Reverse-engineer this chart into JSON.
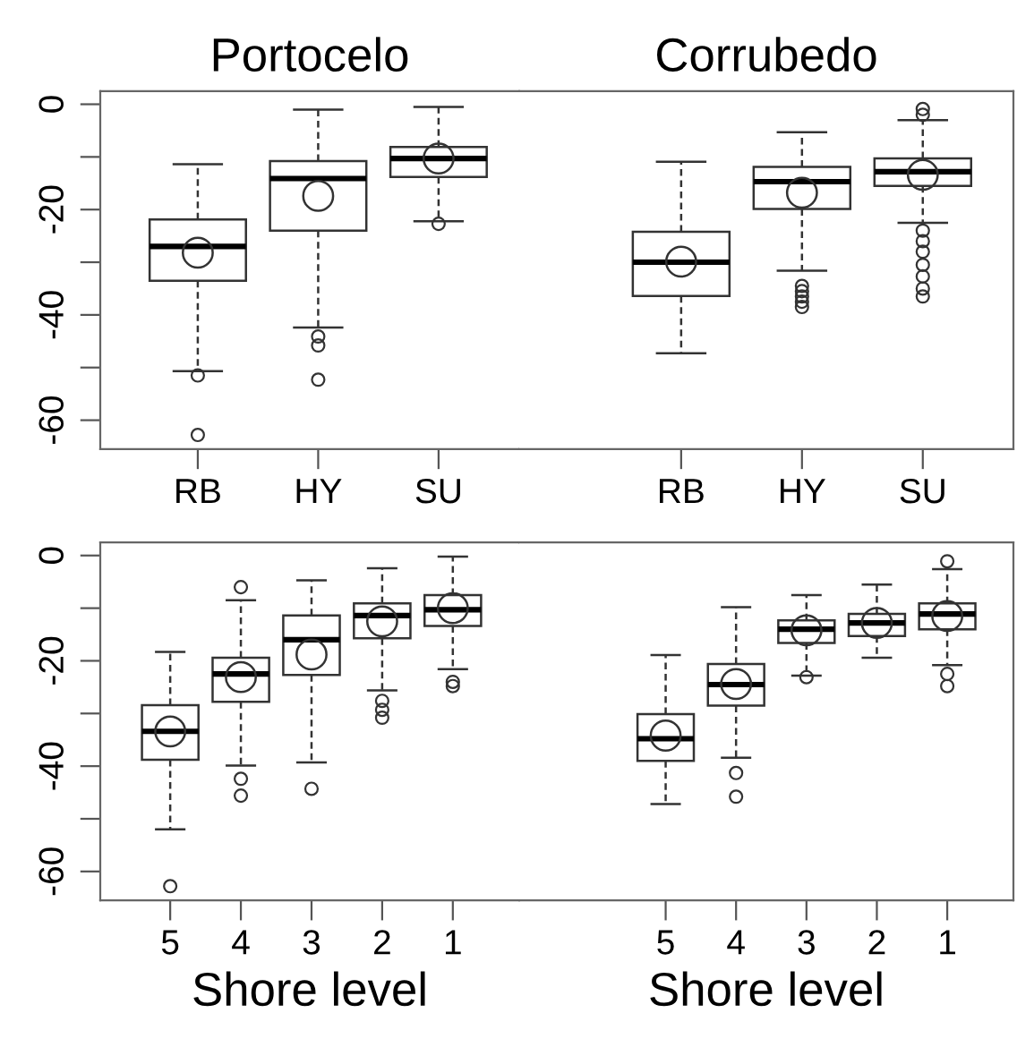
{
  "chart_data": [
    {
      "type": "box",
      "title": "Portocelo",
      "categories": [
        "RB",
        "HY",
        "SU"
      ],
      "ylim": [
        -65.5,
        2.5
      ],
      "yticks": [
        0,
        {
          "value": -10,
          "label": null
        },
        -20,
        {
          "value": -30,
          "label": null
        },
        -40,
        {
          "value": -50,
          "label": null
        },
        -60
      ],
      "grid": false,
      "marker": "circle",
      "boxes": [
        {
          "low": -50.7,
          "q1": -33.5,
          "median": -27,
          "q3": -21.9,
          "high": -11.4,
          "mean": -28.2,
          "outliers": [
            -51.5,
            -62.8
          ]
        },
        {
          "low": -42.4,
          "q1": -24,
          "median": -14.1,
          "q3": -10.8,
          "high": -1,
          "mean": -17.4,
          "outliers": [
            -44.1,
            -45.8,
            -52.3
          ]
        },
        {
          "low": -22.2,
          "q1": -13.8,
          "median": -10.3,
          "q3": -8.1,
          "high": -0.5,
          "mean": -10.3,
          "outliers": [
            -22.7
          ]
        }
      ]
    },
    {
      "type": "box",
      "title": "Corrubedo",
      "categories": [
        "RB",
        "HY",
        "SU"
      ],
      "ylim": [
        -65.5,
        2.5
      ],
      "tick_labels": "x",
      "grid": false,
      "marker": "circle",
      "boxes": [
        {
          "low": -47.3,
          "q1": -36.4,
          "median": -30,
          "q3": -24.2,
          "high": -10.9,
          "mean": -29.9
        },
        {
          "low": -31.6,
          "q1": -19.9,
          "median": -14.7,
          "q3": -11.9,
          "high": -5.3,
          "mean": -16.8,
          "outliers": [
            -34.5,
            -35.5,
            -36.5,
            -37.5,
            -38.5
          ]
        },
        {
          "low": -22.5,
          "q1": -15.5,
          "median": -12.8,
          "q3": -10.3,
          "high": -3,
          "mean": -13.4,
          "outliers": [
            -0.9,
            -2,
            -24,
            -26,
            -28,
            -30.5,
            -32.7,
            -35,
            -36.5
          ]
        }
      ]
    },
    {
      "type": "box",
      "xlabel": "Shore level",
      "categories": [
        "5",
        "4",
        "3",
        "2",
        "1"
      ],
      "ylim": [
        -65.5,
        2.5
      ],
      "yticks": [
        0,
        {
          "value": -10,
          "label": null
        },
        -20,
        {
          "value": -30,
          "label": null
        },
        -40,
        {
          "value": -50,
          "label": null
        },
        -60
      ],
      "grid": false,
      "marker": "circle",
      "boxes": [
        {
          "low": -52,
          "q1": -38.8,
          "median": -33.4,
          "q3": -28.4,
          "high": -18.3,
          "mean": -33.4,
          "outliers": [
            -62.8
          ]
        },
        {
          "low": -39.9,
          "q1": -27.8,
          "median": -22.5,
          "q3": -19.4,
          "high": -8.5,
          "mean": -23.1,
          "outliers": [
            -6,
            -42.4,
            -45.6
          ]
        },
        {
          "low": -39.3,
          "q1": -22.7,
          "median": -16,
          "q3": -11.4,
          "high": -4.7,
          "mean": -18.8,
          "outliers": [
            -44.3
          ]
        },
        {
          "low": -25.6,
          "q1": -15.7,
          "median": -11.4,
          "q3": -9.1,
          "high": -2.4,
          "mean": -12.5,
          "outliers": [
            -27.6,
            -29.3,
            -30.8
          ]
        },
        {
          "low": -21.6,
          "q1": -13.4,
          "median": -10.3,
          "q3": -7.5,
          "high": -0.2,
          "mean": -10,
          "outliers": [
            -24,
            -24.8
          ]
        }
      ]
    },
    {
      "type": "box",
      "xlabel": "Shore level",
      "categories": [
        "5",
        "4",
        "3",
        "2",
        "1"
      ],
      "ylim": [
        -65.5,
        2.5
      ],
      "tick_labels": "x",
      "grid": false,
      "marker": "circle",
      "boxes": [
        {
          "low": -47.2,
          "q1": -39,
          "median": -34.8,
          "q3": -30.1,
          "high": -18.9,
          "mean": -34.2
        },
        {
          "low": -38.4,
          "q1": -28.5,
          "median": -24.5,
          "q3": -20.6,
          "high": -9.8,
          "mean": -24.4,
          "outliers": [
            -41.3,
            -45.8
          ]
        },
        {
          "low": -22.8,
          "q1": -16.6,
          "median": -14,
          "q3": -12.3,
          "high": -7.5,
          "mean": -14.2,
          "outliers": [
            -23.1
          ]
        },
        {
          "low": -19.4,
          "q1": -15.3,
          "median": -12.8,
          "q3": -11.1,
          "high": -5.5,
          "mean": -12.8
        },
        {
          "low": -20.8,
          "q1": -14,
          "median": -11.1,
          "q3": -9.1,
          "high": -2.6,
          "mean": -11.5,
          "outliers": [
            -1.1,
            -22.5,
            -24.8
          ]
        }
      ]
    }
  ]
}
